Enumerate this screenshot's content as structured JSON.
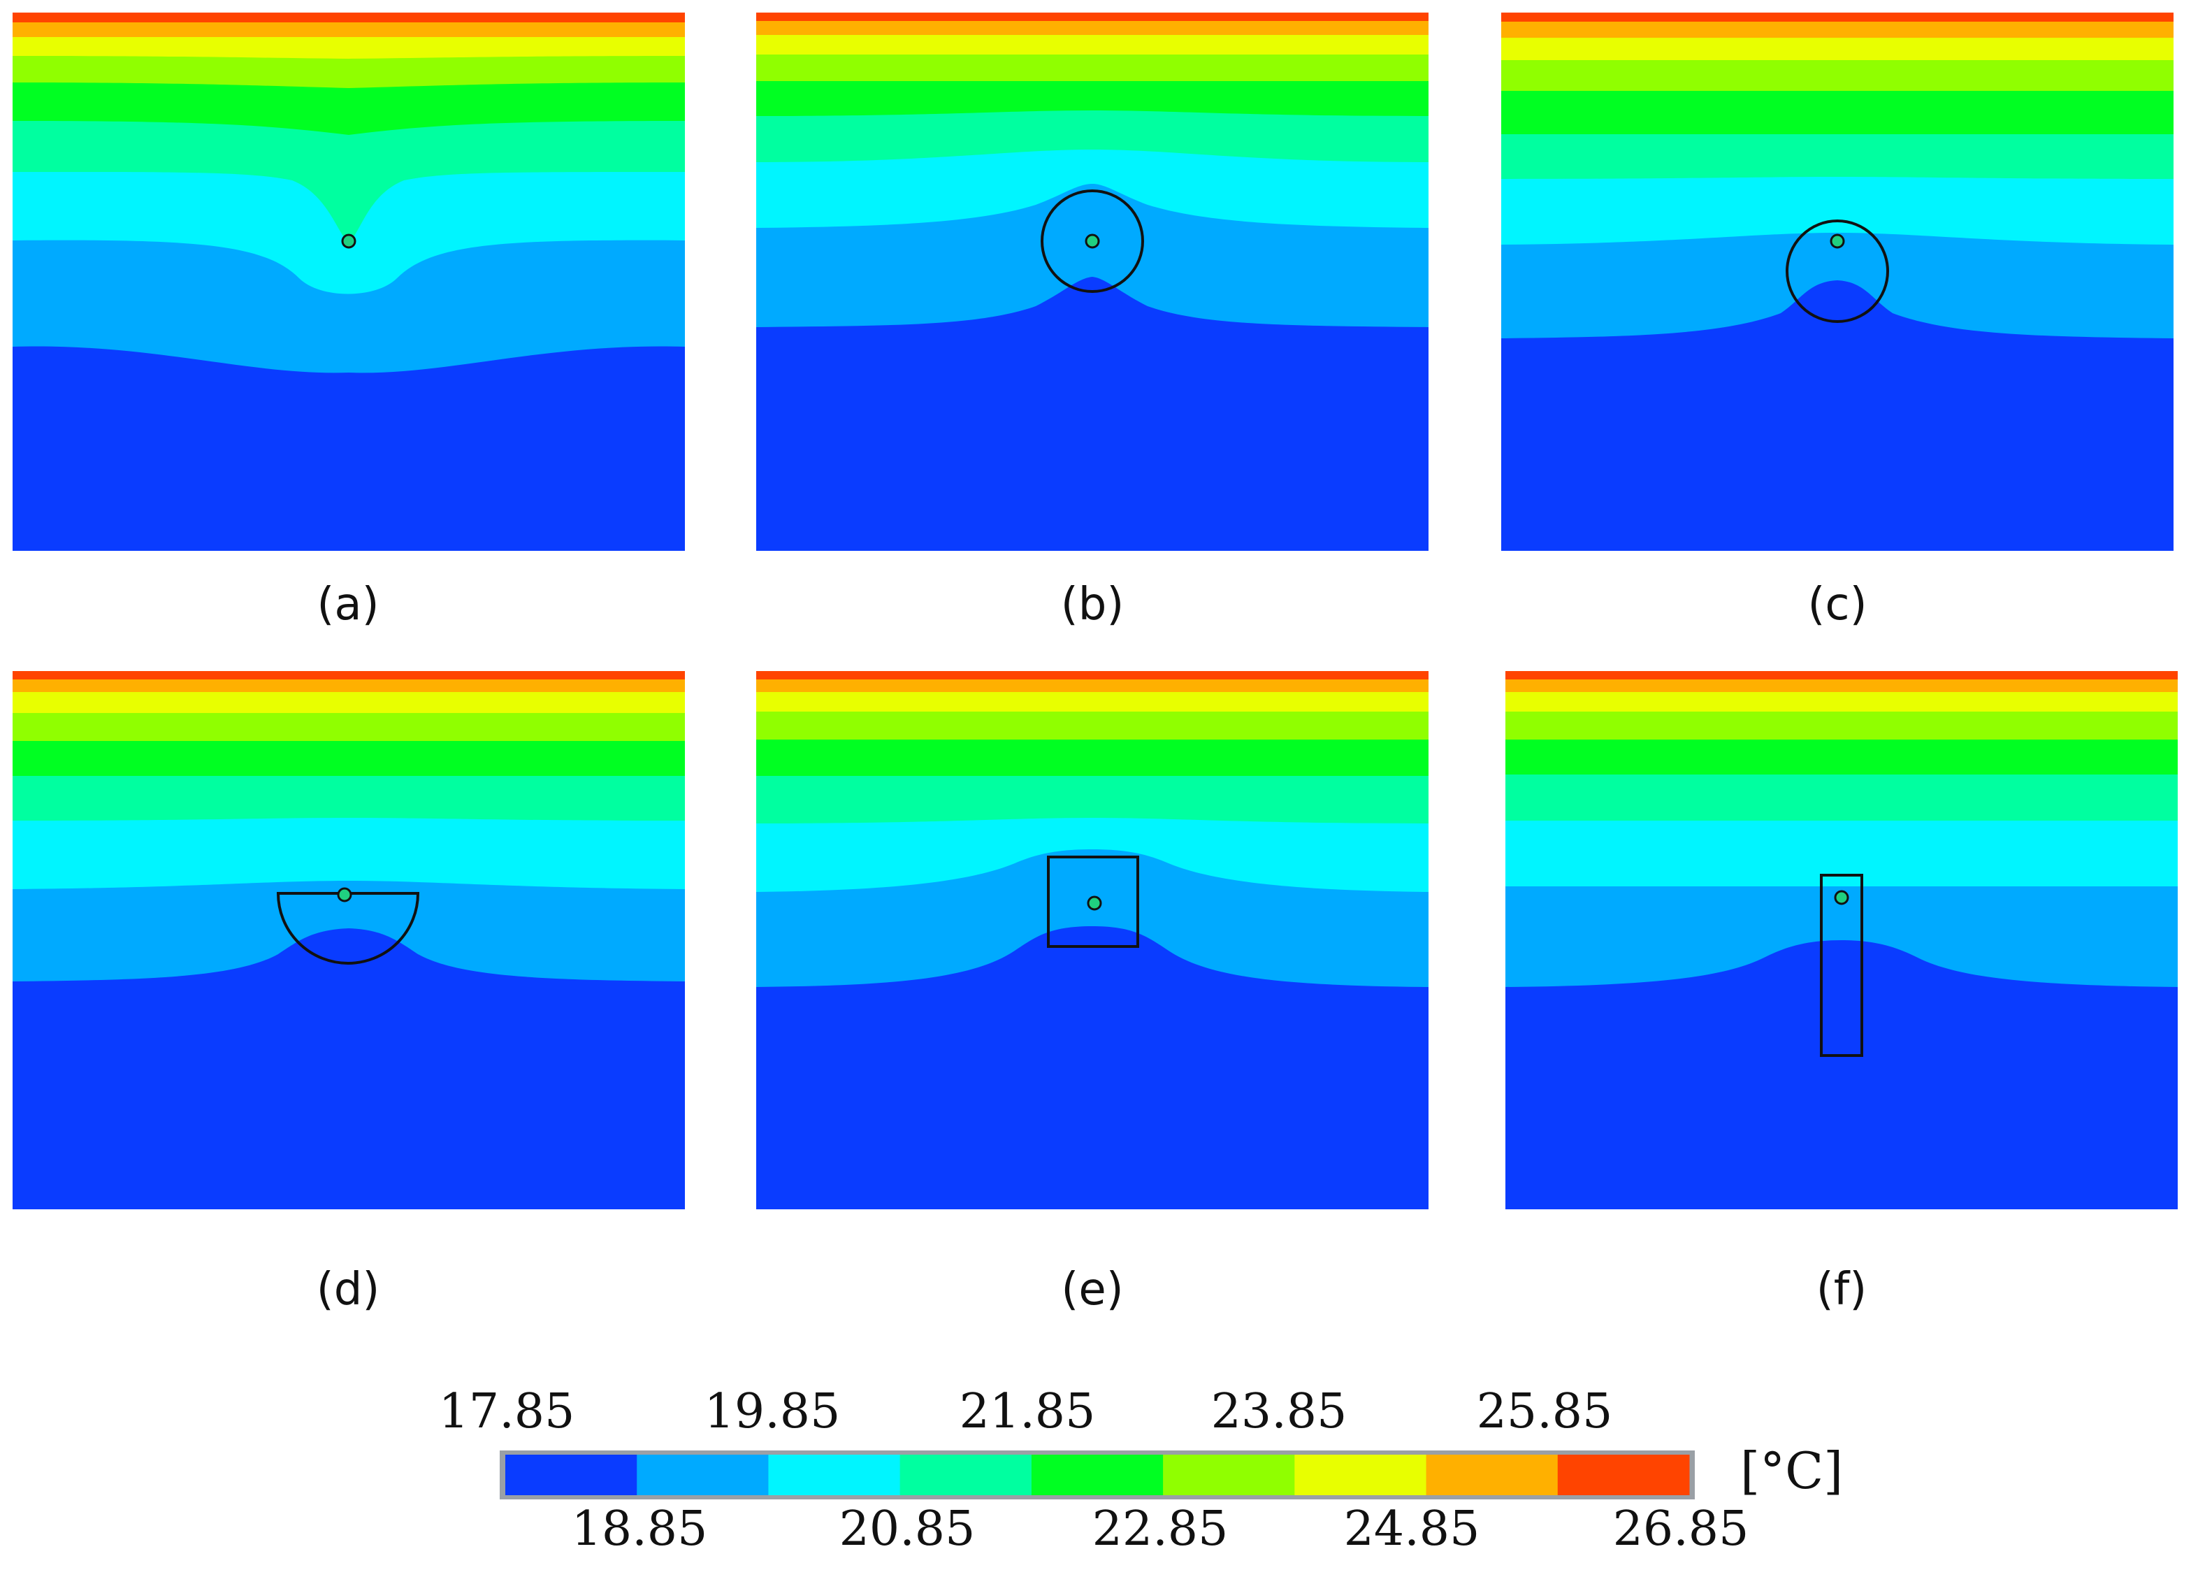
{
  "figure": {
    "bands": [
      {
        "color": "#0a3cff",
        "range": "17.85 - 18.85"
      },
      {
        "color": "#00aaff",
        "range": "18.85 - 19.85"
      },
      {
        "color": "#00f5ff",
        "range": "19.85 - 20.85"
      },
      {
        "color": "#00ffa0",
        "range": "20.85 - 21.85"
      },
      {
        "color": "#00ff22",
        "range": "21.85 - 22.85"
      },
      {
        "color": "#90ff00",
        "range": "22.85 - 23.85"
      },
      {
        "color": "#e8ff00",
        "range": "23.85 - 24.85"
      },
      {
        "color": "#ffb000",
        "range": "24.85 - 25.85"
      },
      {
        "color": "#ff4400",
        "range": "25.85 - 26.85"
      }
    ],
    "panels": [
      {
        "id": "a",
        "caption": "(a)",
        "obstacle": "none"
      },
      {
        "id": "b",
        "caption": "(b)",
        "obstacle": "circle-centered"
      },
      {
        "id": "c",
        "caption": "(c)",
        "obstacle": "circle-below"
      },
      {
        "id": "d",
        "caption": "(d)",
        "obstacle": "half-circle"
      },
      {
        "id": "e",
        "caption": "(e)",
        "obstacle": "square"
      },
      {
        "id": "f",
        "caption": "(f)",
        "obstacle": "vertical-rectangle"
      }
    ]
  },
  "legend": {
    "unit": "[°C]",
    "top_labels": [
      "17.85",
      "19.85",
      "21.85",
      "23.85",
      "25.85"
    ],
    "bottom_labels": [
      "18.85",
      "20.85",
      "22.85",
      "24.85",
      "26.85"
    ],
    "colors": [
      "#0a3cff",
      "#00aaff",
      "#00f5ff",
      "#00ffa0",
      "#00ff22",
      "#90ff00",
      "#e8ff00",
      "#ffb000",
      "#ff4400"
    ]
  }
}
